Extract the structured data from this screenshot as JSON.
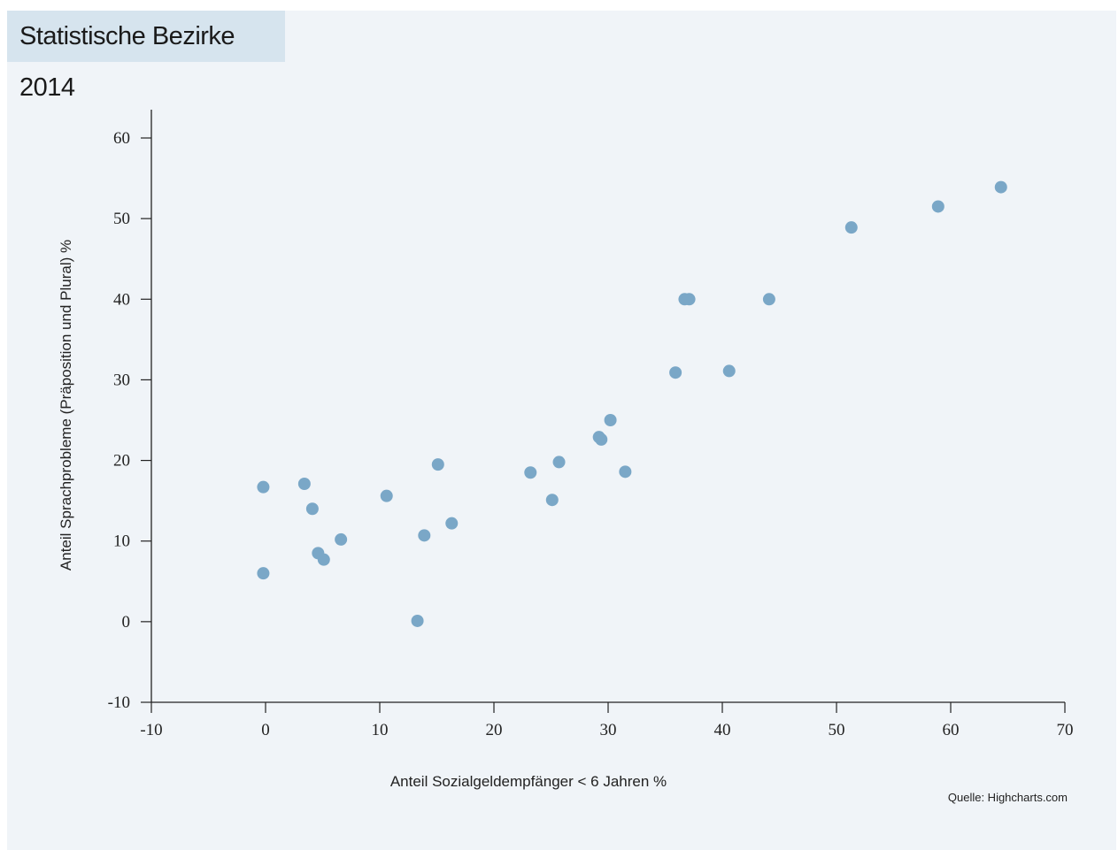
{
  "title": "Statistische Bezirke 2014",
  "credit": "Quelle: Highcharts.com",
  "colors": {
    "point": "#7aa7c7",
    "axis": "#222222",
    "background": "#f0f4f8",
    "title_background": "#d6e4ee"
  },
  "chart_data": {
    "type": "scatter",
    "title": "Statistische Bezirke 2014",
    "xlabel": "Anteil Sozialgeldempfänger < 6 Jahren %",
    "ylabel": "Anteil Sprachprobleme (Präposition und Plural) %",
    "xlim": [
      -10,
      70
    ],
    "ylim": [
      -10,
      60
    ],
    "x_ticks": [
      -10,
      0,
      10,
      20,
      30,
      40,
      50,
      60,
      70
    ],
    "y_ticks": [
      -10,
      0,
      10,
      20,
      30,
      40,
      50,
      60
    ],
    "grid": false,
    "points": [
      {
        "x": -0.2,
        "y": 16.7
      },
      {
        "x": -0.2,
        "y": 6.0
      },
      {
        "x": 3.4,
        "y": 17.1
      },
      {
        "x": 4.1,
        "y": 14.0
      },
      {
        "x": 4.6,
        "y": 8.5
      },
      {
        "x": 5.1,
        "y": 7.7
      },
      {
        "x": 6.6,
        "y": 10.2
      },
      {
        "x": 10.6,
        "y": 15.6
      },
      {
        "x": 13.3,
        "y": 0.1
      },
      {
        "x": 13.9,
        "y": 10.7
      },
      {
        "x": 15.1,
        "y": 19.5
      },
      {
        "x": 16.3,
        "y": 12.2
      },
      {
        "x": 23.2,
        "y": 18.5
      },
      {
        "x": 25.1,
        "y": 15.1
      },
      {
        "x": 25.7,
        "y": 19.8
      },
      {
        "x": 29.2,
        "y": 22.9
      },
      {
        "x": 29.4,
        "y": 22.6
      },
      {
        "x": 30.2,
        "y": 25.0
      },
      {
        "x": 31.5,
        "y": 18.6
      },
      {
        "x": 35.9,
        "y": 30.9
      },
      {
        "x": 36.7,
        "y": 40.0
      },
      {
        "x": 37.1,
        "y": 40.0
      },
      {
        "x": 40.6,
        "y": 31.1
      },
      {
        "x": 44.1,
        "y": 40.0
      },
      {
        "x": 51.3,
        "y": 48.9
      },
      {
        "x": 58.9,
        "y": 51.5
      },
      {
        "x": 64.4,
        "y": 53.9
      }
    ]
  }
}
